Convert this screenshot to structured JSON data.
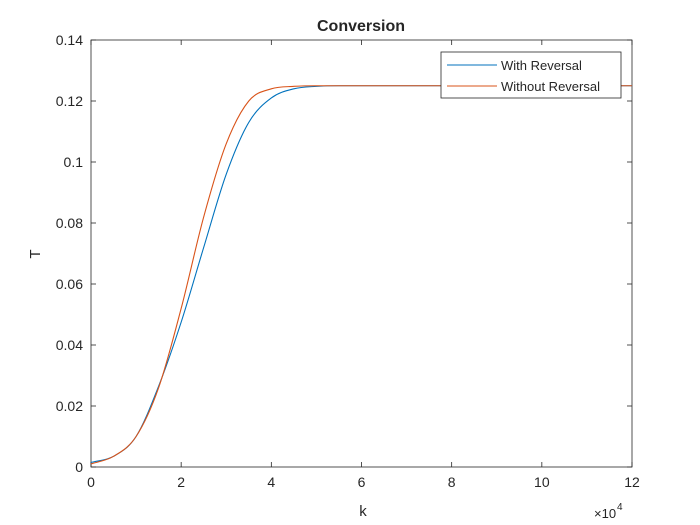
{
  "chart_data": {
    "type": "line",
    "title": "Conversion",
    "xlabel": "k",
    "ylabel": "T",
    "x_exponent_label": "×10",
    "x_exponent_power": "4",
    "x_scale_factor": 10000,
    "xlim": [
      0,
      12
    ],
    "ylim": [
      0,
      0.14
    ],
    "xticks": [
      0,
      2,
      4,
      6,
      8,
      10,
      12
    ],
    "xtick_labels": [
      "0",
      "2",
      "4",
      "6",
      "8",
      "10",
      "12"
    ],
    "yticks": [
      0,
      0.02,
      0.04,
      0.06,
      0.08,
      0.1,
      0.12,
      0.14
    ],
    "ytick_labels": [
      "0",
      "0.02",
      "0.04",
      "0.06",
      "0.08",
      "0.1",
      "0.12",
      "0.14"
    ],
    "grid": false,
    "legend_position": "top-right",
    "series": [
      {
        "name": "With Reversal",
        "color": "#0072BD",
        "x": [
          0,
          0.5,
          1,
          1.5,
          2,
          2.5,
          3,
          3.5,
          4,
          4.5,
          5,
          5.5,
          6,
          7,
          8,
          9,
          10,
          11,
          12
        ],
        "y": [
          0.0015,
          0.0035,
          0.01,
          0.0265,
          0.0475,
          0.072,
          0.096,
          0.113,
          0.121,
          0.124,
          0.1248,
          0.125,
          0.125,
          0.125,
          0.125,
          0.125,
          0.125,
          0.125,
          0.125
        ]
      },
      {
        "name": "Without Reversal",
        "color": "#D95319",
        "x": [
          0,
          0.5,
          1,
          1.5,
          2,
          2.5,
          3,
          3.5,
          4,
          4.5,
          5,
          5.5,
          6,
          7,
          8,
          9,
          10,
          11,
          12
        ],
        "y": [
          0.001,
          0.0035,
          0.01,
          0.026,
          0.052,
          0.082,
          0.106,
          0.12,
          0.124,
          0.1248,
          0.125,
          0.125,
          0.125,
          0.125,
          0.125,
          0.125,
          0.125,
          0.125,
          0.125
        ]
      }
    ]
  }
}
